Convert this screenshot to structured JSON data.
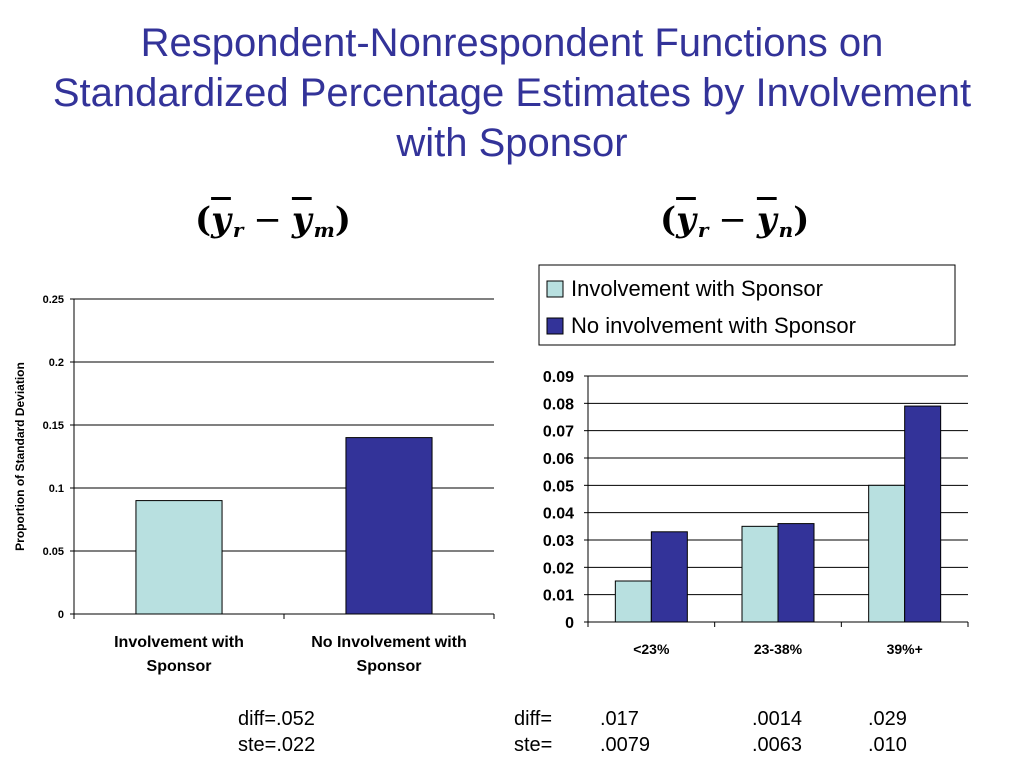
{
  "title": "Respondent-Nonrespondent Functions on Standardized Percentage Estimates by Involvement with Sponsor",
  "formulas": {
    "left": {
      "y1": "y",
      "s1": "r",
      "minus": "−",
      "y2": "y",
      "s2": "m"
    },
    "right": {
      "y1": "y",
      "s1": "r",
      "minus": "−",
      "y2": "y",
      "s2": "n"
    }
  },
  "colors": {
    "light": "#B8E0E0",
    "dark": "#333399",
    "title": "#333399"
  },
  "chart_data": [
    {
      "type": "bar",
      "categories": [
        "Involvement with Sponsor",
        "No Involvement with Sponsor"
      ],
      "category_lines": [
        [
          "Involvement with",
          "Sponsor"
        ],
        [
          "No Involvement with",
          "Sponsor"
        ]
      ],
      "values": [
        0.09,
        0.14
      ],
      "colors": [
        "#B8E0E0",
        "#333399"
      ],
      "ylabel": "Proportion of Standard Deviation",
      "ylim": [
        0,
        0.25
      ],
      "yticks": [
        "0",
        "0.05",
        "0.1",
        "0.15",
        "0.2",
        "0.25"
      ],
      "grid": true
    },
    {
      "type": "bar",
      "categories": [
        "<23%",
        "23-38%",
        "39%+"
      ],
      "series": [
        {
          "name": "Involvement with Sponsor",
          "values": [
            0.015,
            0.035,
            0.05
          ],
          "color": "#B8E0E0"
        },
        {
          "name": "No involvement with Sponsor",
          "values": [
            0.033,
            0.036,
            0.079
          ],
          "color": "#333399"
        }
      ],
      "ylim": [
        0,
        0.09
      ],
      "yticks": [
        "0",
        "0.01",
        "0.02",
        "0.03",
        "0.04",
        "0.05",
        "0.06",
        "0.07",
        "0.08",
        "0.09"
      ],
      "grid": true,
      "legend": "top"
    }
  ],
  "stats": {
    "left": {
      "diff": "diff=.052",
      "ste": "ste=.022"
    },
    "right": {
      "diff_label": "diff=",
      "diff_values": [
        ".017",
        ".0014",
        ".029"
      ],
      "ste_label": "ste=",
      "ste_values": [
        ".0079",
        ".0063",
        ".010"
      ]
    }
  }
}
